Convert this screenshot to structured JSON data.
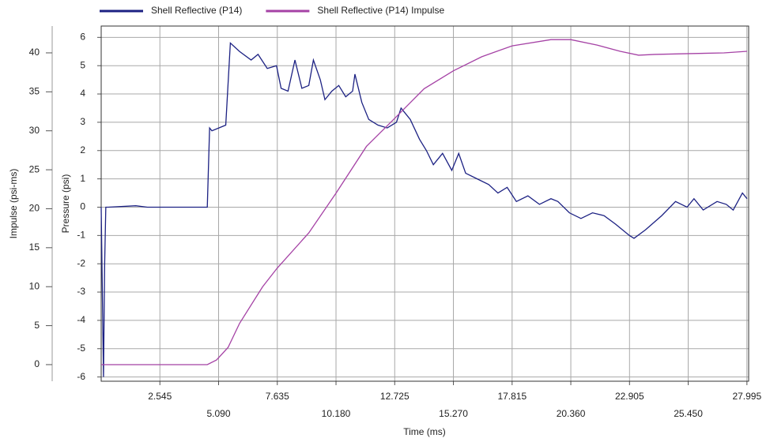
{
  "chart_data": {
    "type": "line",
    "xlabel": "Time (ms)",
    "ylabel": "Pressure (psi)",
    "y2label": "Impulse (psi-ms)",
    "xlim": [
      0,
      28.07
    ],
    "ylim": [
      -6.15,
      6.4
    ],
    "y2lim": [
      -2.13,
      43.44
    ],
    "xticks": [
      2.545,
      {
        "value": 5.09,
        "label": "5.090"
      },
      7.635,
      {
        "value": 10.18,
        "label": "10.180"
      },
      12.725,
      {
        "value": 15.27,
        "label": "15.270"
      },
      17.815,
      {
        "value": 20.36,
        "label": "20.360"
      },
      22.905,
      {
        "value": 25.45,
        "label": "25.450"
      },
      27.995
    ],
    "yticks": [
      -6,
      -5,
      -4,
      -3,
      -2,
      -1,
      0,
      1,
      2,
      3,
      4,
      5,
      6
    ],
    "y2ticks": [
      0,
      5,
      10,
      15,
      20,
      25,
      30,
      35,
      40
    ],
    "grid": true,
    "legend": "top",
    "series": [
      {
        "name": "Shell Reflective (P14)",
        "color": "#1c2183",
        "axis": "y",
        "x": [
          0.0,
          0.05,
          0.1,
          0.15,
          0.2,
          0.3,
          1.5,
          2.0,
          4.6,
          4.7,
          4.8,
          5.4,
          5.6,
          6.0,
          6.5,
          6.8,
          7.2,
          7.6,
          7.8,
          8.1,
          8.4,
          8.7,
          9.0,
          9.2,
          9.5,
          9.7,
          10.0,
          10.3,
          10.6,
          10.9,
          11.0,
          11.3,
          11.6,
          12.0,
          12.4,
          12.8,
          13.0,
          13.4,
          13.8,
          14.1,
          14.4,
          14.8,
          15.2,
          15.5,
          15.8,
          16.3,
          16.8,
          17.2,
          17.6,
          18.0,
          18.5,
          19.0,
          19.5,
          19.8,
          20.3,
          20.8,
          21.3,
          21.8,
          22.3,
          22.9,
          23.1,
          23.6,
          24.3,
          24.9,
          25.4,
          25.7,
          26.1,
          26.7,
          27.1,
          27.4,
          27.8,
          28.0
        ],
        "values": [
          0.0,
          -3.0,
          -6.0,
          -2.0,
          0.0,
          0.0,
          0.05,
          0.0,
          0.0,
          2.8,
          2.7,
          2.9,
          5.8,
          5.5,
          5.2,
          5.4,
          4.9,
          5.0,
          4.2,
          4.1,
          5.2,
          4.2,
          4.3,
          5.2,
          4.5,
          3.8,
          4.1,
          4.3,
          3.9,
          4.1,
          4.7,
          3.7,
          3.1,
          2.9,
          2.8,
          3.0,
          3.5,
          3.1,
          2.4,
          2.0,
          1.5,
          1.9,
          1.3,
          1.9,
          1.2,
          1.0,
          0.8,
          0.5,
          0.7,
          0.2,
          0.4,
          0.1,
          0.3,
          0.2,
          -0.2,
          -0.4,
          -0.2,
          -0.3,
          -0.6,
          -1.0,
          -1.1,
          -0.8,
          -0.3,
          0.2,
          0.0,
          0.3,
          -0.1,
          0.2,
          0.1,
          -0.1,
          0.5,
          0.3
        ]
      },
      {
        "name": "Shell Reflective (P14) Impulse",
        "color": "#a542a5",
        "axis": "y2",
        "x": [
          0.0,
          4.6,
          5.0,
          5.5,
          6.0,
          7.0,
          7.635,
          9.0,
          10.18,
          11.5,
          12.725,
          14.0,
          15.27,
          16.5,
          17.815,
          19.5,
          20.36,
          21.5,
          22.5,
          23.3,
          24.0,
          25.5,
          27.0,
          28.0
        ],
        "values": [
          0.0,
          0.0,
          0.6,
          2.2,
          5.3,
          10.0,
          12.4,
          16.9,
          22.0,
          28.0,
          31.6,
          35.4,
          37.7,
          39.5,
          40.9,
          41.7,
          41.7,
          41.0,
          40.2,
          39.7,
          39.8,
          39.9,
          40.0,
          40.2
        ]
      }
    ]
  }
}
